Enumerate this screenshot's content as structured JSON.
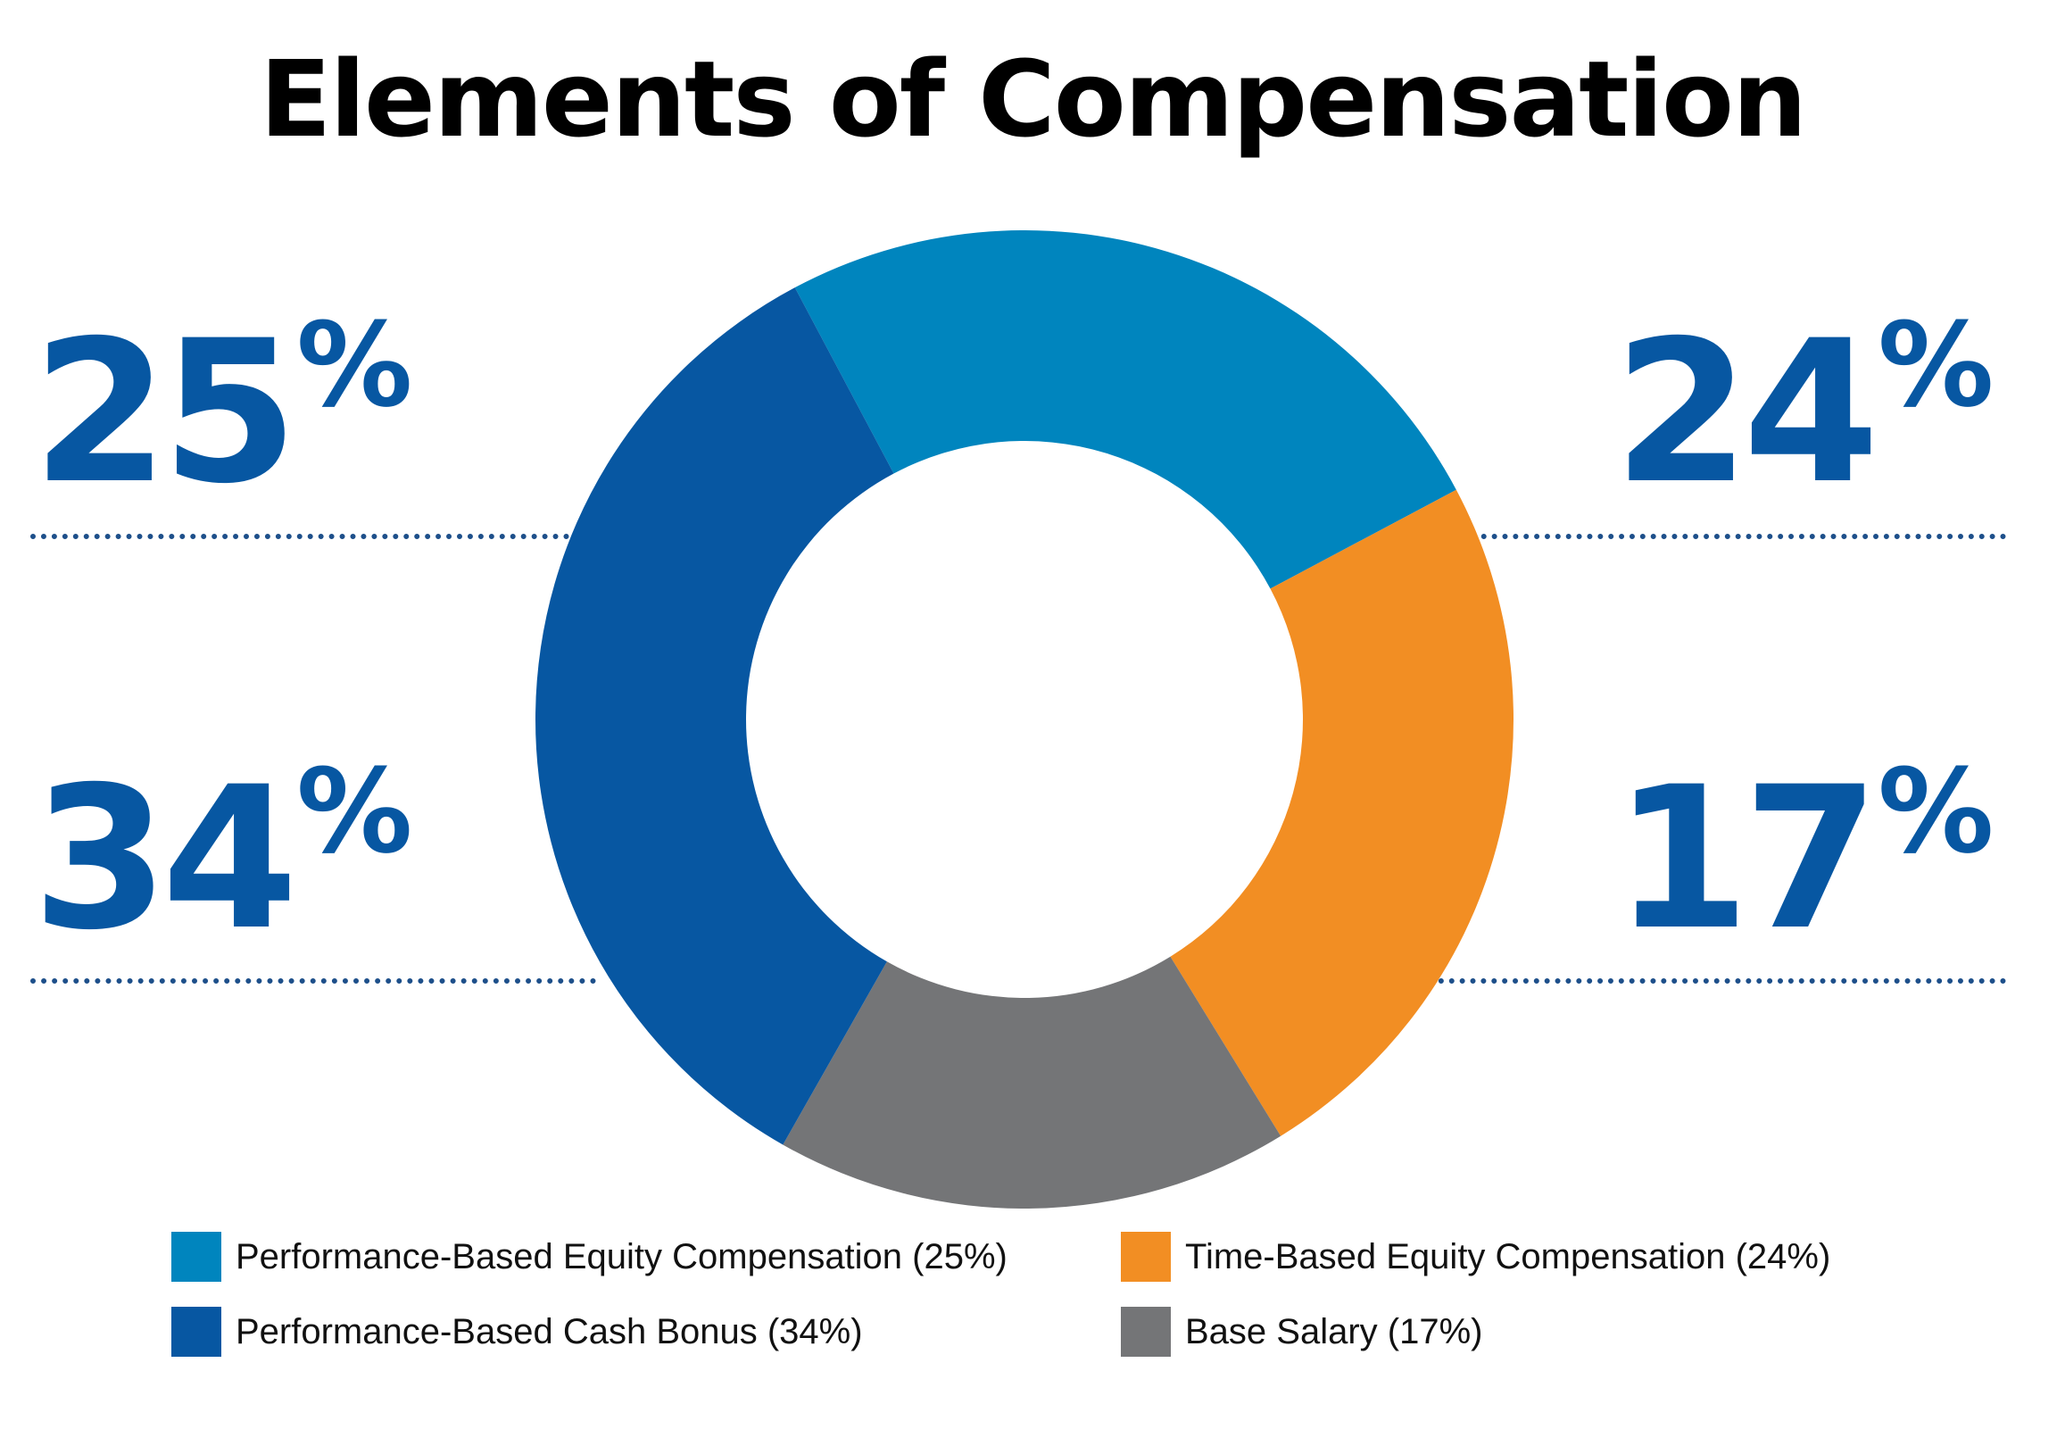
{
  "chart_data": {
    "type": "pie",
    "variant": "donut",
    "title": "Elements of Compensation",
    "slices": [
      {
        "label": "Performance-Based Equity Compensation (25%)",
        "value": 25,
        "color": "#0085be",
        "callout": "25",
        "callout_unit": "%"
      },
      {
        "label": "Time-Based Equity Compensation (24%)",
        "value": 24,
        "color": "#f28e23",
        "callout": "24",
        "callout_unit": "%"
      },
      {
        "label": "Base Salary (17%)",
        "value": 17,
        "color": "#747577",
        "callout": "17",
        "callout_unit": "%"
      },
      {
        "label": "Performance-Based Cash Bonus (34%)",
        "value": 34,
        "color": "#0757a2",
        "callout": "34",
        "callout_unit": "%"
      }
    ],
    "legend_position": "bottom",
    "accent_color": "#0757a2"
  }
}
